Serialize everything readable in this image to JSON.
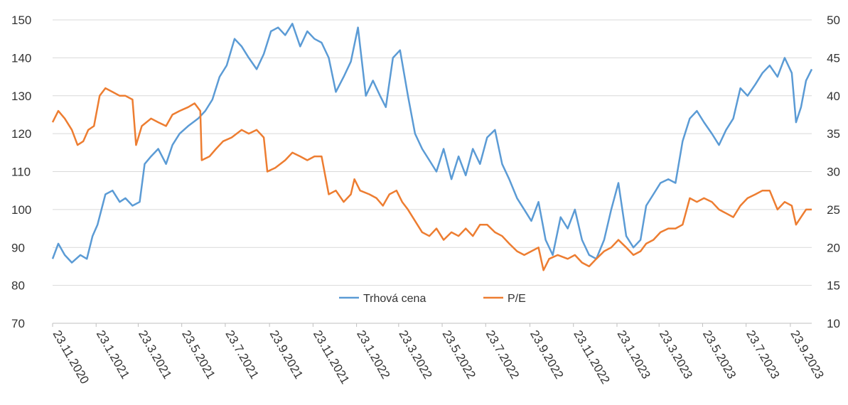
{
  "chart_data": {
    "type": "line",
    "title": "",
    "xlabel": "",
    "ylabel": "",
    "y_left": {
      "min": 70,
      "max": 150,
      "step": 10,
      "ticks": [
        "70",
        "80",
        "90",
        "100",
        "110",
        "120",
        "130",
        "140",
        "150"
      ]
    },
    "y_right": {
      "min": 10,
      "max": 50,
      "step": 5,
      "ticks": [
        "10",
        "15",
        "20",
        "25",
        "30",
        "35",
        "40",
        "45",
        "50"
      ]
    },
    "x_axis": {
      "start": "2020-11-23",
      "end": "2023-10-23",
      "labels": [
        "23.11.2020",
        "23.1.2021",
        "23.3.2021",
        "23.5.2021",
        "23.7.2021",
        "23.9.2021",
        "23.11.2021",
        "23.1.2022",
        "23.3.2022",
        "23.5.2022",
        "23.7.2022",
        "23.9.2022",
        "23.11.2022",
        "23.1.2023",
        "23.3.2023",
        "23.5.2023",
        "23.7.2023",
        "23.9.2023"
      ],
      "label_dates": [
        "2020-11-23",
        "2021-01-23",
        "2021-03-23",
        "2021-05-23",
        "2021-07-23",
        "2021-09-23",
        "2021-11-23",
        "2022-01-23",
        "2022-03-23",
        "2022-05-23",
        "2022-07-23",
        "2022-09-23",
        "2022-11-23",
        "2023-01-23",
        "2023-03-23",
        "2023-05-23",
        "2023-07-23",
        "2023-09-23"
      ]
    },
    "grid": true,
    "legend_position": "bottom-center",
    "series": [
      {
        "name": "Trhová cena",
        "axis": "left",
        "color": "#5b9bd5",
        "points": [
          [
            "2020-11-23",
            87
          ],
          [
            "2020-12-01",
            91
          ],
          [
            "2020-12-10",
            88
          ],
          [
            "2020-12-20",
            86
          ],
          [
            "2021-01-01",
            88
          ],
          [
            "2021-01-10",
            87
          ],
          [
            "2021-01-18",
            93
          ],
          [
            "2021-01-25",
            96
          ],
          [
            "2021-02-05",
            104
          ],
          [
            "2021-02-15",
            105
          ],
          [
            "2021-02-25",
            102
          ],
          [
            "2021-03-05",
            103
          ],
          [
            "2021-03-15",
            101
          ],
          [
            "2021-03-25",
            102
          ],
          [
            "2021-04-01",
            112
          ],
          [
            "2021-04-10",
            114
          ],
          [
            "2021-04-20",
            116
          ],
          [
            "2021-05-01",
            112
          ],
          [
            "2021-05-10",
            117
          ],
          [
            "2021-05-20",
            120
          ],
          [
            "2021-06-01",
            122
          ],
          [
            "2021-06-15",
            124
          ],
          [
            "2021-06-25",
            126
          ],
          [
            "2021-07-05",
            129
          ],
          [
            "2021-07-15",
            135
          ],
          [
            "2021-07-25",
            138
          ],
          [
            "2021-08-05",
            145
          ],
          [
            "2021-08-15",
            143
          ],
          [
            "2021-08-25",
            140
          ],
          [
            "2021-09-05",
            137
          ],
          [
            "2021-09-15",
            141
          ],
          [
            "2021-09-25",
            147
          ],
          [
            "2021-10-05",
            148
          ],
          [
            "2021-10-15",
            146
          ],
          [
            "2021-10-25",
            149
          ],
          [
            "2021-11-05",
            143
          ],
          [
            "2021-11-15",
            147
          ],
          [
            "2021-11-25",
            145
          ],
          [
            "2021-12-05",
            144
          ],
          [
            "2021-12-15",
            140
          ],
          [
            "2021-12-25",
            131
          ],
          [
            "2022-01-05",
            135
          ],
          [
            "2022-01-15",
            139
          ],
          [
            "2022-01-25",
            148
          ],
          [
            "2022-02-05",
            130
          ],
          [
            "2022-02-15",
            134
          ],
          [
            "2022-02-25",
            130
          ],
          [
            "2022-03-05",
            127
          ],
          [
            "2022-03-15",
            140
          ],
          [
            "2022-03-25",
            142
          ],
          [
            "2022-04-05",
            130
          ],
          [
            "2022-04-15",
            120
          ],
          [
            "2022-04-25",
            116
          ],
          [
            "2022-05-05",
            113
          ],
          [
            "2022-05-15",
            110
          ],
          [
            "2022-05-25",
            116
          ],
          [
            "2022-06-05",
            108
          ],
          [
            "2022-06-15",
            114
          ],
          [
            "2022-06-25",
            109
          ],
          [
            "2022-07-05",
            116
          ],
          [
            "2022-07-15",
            112
          ],
          [
            "2022-07-25",
            119
          ],
          [
            "2022-08-05",
            121
          ],
          [
            "2022-08-15",
            112
          ],
          [
            "2022-08-25",
            108
          ],
          [
            "2022-09-05",
            103
          ],
          [
            "2022-09-15",
            100
          ],
          [
            "2022-09-25",
            97
          ],
          [
            "2022-10-05",
            102
          ],
          [
            "2022-10-15",
            92
          ],
          [
            "2022-10-25",
            88
          ],
          [
            "2022-11-05",
            98
          ],
          [
            "2022-11-15",
            95
          ],
          [
            "2022-11-25",
            100
          ],
          [
            "2022-12-05",
            92
          ],
          [
            "2022-12-15",
            88
          ],
          [
            "2022-12-25",
            87
          ],
          [
            "2023-01-05",
            92
          ],
          [
            "2023-01-15",
            100
          ],
          [
            "2023-01-25",
            107
          ],
          [
            "2023-02-05",
            93
          ],
          [
            "2023-02-15",
            90
          ],
          [
            "2023-02-25",
            92
          ],
          [
            "2023-03-05",
            101
          ],
          [
            "2023-03-15",
            104
          ],
          [
            "2023-03-25",
            107
          ],
          [
            "2023-04-05",
            108
          ],
          [
            "2023-04-15",
            107
          ],
          [
            "2023-04-25",
            118
          ],
          [
            "2023-05-05",
            124
          ],
          [
            "2023-05-15",
            126
          ],
          [
            "2023-05-25",
            123
          ],
          [
            "2023-06-05",
            120
          ],
          [
            "2023-06-15",
            117
          ],
          [
            "2023-06-25",
            121
          ],
          [
            "2023-07-05",
            124
          ],
          [
            "2023-07-15",
            132
          ],
          [
            "2023-07-25",
            130
          ],
          [
            "2023-08-05",
            133
          ],
          [
            "2023-08-15",
            136
          ],
          [
            "2023-08-25",
            138
          ],
          [
            "2023-09-05",
            135
          ],
          [
            "2023-09-15",
            140
          ],
          [
            "2023-09-25",
            136
          ],
          [
            "2023-10-01",
            123
          ],
          [
            "2023-10-08",
            127
          ],
          [
            "2023-10-15",
            134
          ],
          [
            "2023-10-23",
            137
          ]
        ]
      },
      {
        "name": "P/E",
        "axis": "right",
        "color": "#ed7d31",
        "points": [
          [
            "2020-11-23",
            36.5
          ],
          [
            "2020-12-01",
            38
          ],
          [
            "2020-12-10",
            37
          ],
          [
            "2020-12-20",
            35.5
          ],
          [
            "2020-12-28",
            33.5
          ],
          [
            "2021-01-05",
            34
          ],
          [
            "2021-01-12",
            35.5
          ],
          [
            "2021-01-20",
            36
          ],
          [
            "2021-01-28",
            40
          ],
          [
            "2021-02-05",
            41
          ],
          [
            "2021-02-15",
            40.5
          ],
          [
            "2021-02-25",
            40
          ],
          [
            "2021-03-05",
            40
          ],
          [
            "2021-03-15",
            39.5
          ],
          [
            "2021-03-20",
            33.5
          ],
          [
            "2021-03-28",
            36
          ],
          [
            "2021-04-10",
            37
          ],
          [
            "2021-04-20",
            36.5
          ],
          [
            "2021-05-01",
            36
          ],
          [
            "2021-05-10",
            37.5
          ],
          [
            "2021-05-20",
            38
          ],
          [
            "2021-06-01",
            38.5
          ],
          [
            "2021-06-10",
            39
          ],
          [
            "2021-06-18",
            38
          ],
          [
            "2021-06-20",
            31.5
          ],
          [
            "2021-07-01",
            32
          ],
          [
            "2021-07-10",
            33
          ],
          [
            "2021-07-20",
            34
          ],
          [
            "2021-08-01",
            34.5
          ],
          [
            "2021-08-15",
            35.5
          ],
          [
            "2021-08-25",
            35
          ],
          [
            "2021-09-05",
            35.5
          ],
          [
            "2021-09-15",
            34.5
          ],
          [
            "2021-09-20",
            30
          ],
          [
            "2021-10-01",
            30.5
          ],
          [
            "2021-10-15",
            31.5
          ],
          [
            "2021-10-25",
            32.5
          ],
          [
            "2021-11-05",
            32
          ],
          [
            "2021-11-15",
            31.5
          ],
          [
            "2021-11-25",
            32
          ],
          [
            "2021-12-05",
            32
          ],
          [
            "2021-12-15",
            27
          ],
          [
            "2021-12-25",
            27.5
          ],
          [
            "2022-01-05",
            26
          ],
          [
            "2022-01-15",
            27
          ],
          [
            "2022-01-20",
            29
          ],
          [
            "2022-01-28",
            27.5
          ],
          [
            "2022-02-10",
            27
          ],
          [
            "2022-02-20",
            26.5
          ],
          [
            "2022-03-01",
            25.5
          ],
          [
            "2022-03-10",
            27
          ],
          [
            "2022-03-20",
            27.5
          ],
          [
            "2022-03-28",
            26
          ],
          [
            "2022-04-05",
            25
          ],
          [
            "2022-04-15",
            23.5
          ],
          [
            "2022-04-25",
            22
          ],
          [
            "2022-05-05",
            21.5
          ],
          [
            "2022-05-15",
            22.5
          ],
          [
            "2022-05-25",
            21
          ],
          [
            "2022-06-05",
            22
          ],
          [
            "2022-06-15",
            21.5
          ],
          [
            "2022-06-25",
            22.5
          ],
          [
            "2022-07-05",
            21.5
          ],
          [
            "2022-07-15",
            23
          ],
          [
            "2022-07-25",
            23
          ],
          [
            "2022-08-05",
            22
          ],
          [
            "2022-08-15",
            21.5
          ],
          [
            "2022-08-25",
            20.5
          ],
          [
            "2022-09-05",
            19.5
          ],
          [
            "2022-09-15",
            19
          ],
          [
            "2022-09-25",
            19.5
          ],
          [
            "2022-10-05",
            20
          ],
          [
            "2022-10-12",
            17
          ],
          [
            "2022-10-20",
            18.5
          ],
          [
            "2022-11-01",
            19
          ],
          [
            "2022-11-15",
            18.5
          ],
          [
            "2022-11-25",
            19
          ],
          [
            "2022-12-05",
            18
          ],
          [
            "2022-12-15",
            17.5
          ],
          [
            "2022-12-25",
            18.5
          ],
          [
            "2023-01-05",
            19.5
          ],
          [
            "2023-01-15",
            20
          ],
          [
            "2023-01-25",
            21
          ],
          [
            "2023-02-05",
            20
          ],
          [
            "2023-02-15",
            19
          ],
          [
            "2023-02-25",
            19.5
          ],
          [
            "2023-03-05",
            20.5
          ],
          [
            "2023-03-15",
            21
          ],
          [
            "2023-03-25",
            22
          ],
          [
            "2023-04-05",
            22.5
          ],
          [
            "2023-04-15",
            22.5
          ],
          [
            "2023-04-25",
            23
          ],
          [
            "2023-05-05",
            26.5
          ],
          [
            "2023-05-15",
            26
          ],
          [
            "2023-05-25",
            26.5
          ],
          [
            "2023-06-05",
            26
          ],
          [
            "2023-06-15",
            25
          ],
          [
            "2023-06-25",
            24.5
          ],
          [
            "2023-07-05",
            24
          ],
          [
            "2023-07-15",
            25.5
          ],
          [
            "2023-07-25",
            26.5
          ],
          [
            "2023-08-05",
            27
          ],
          [
            "2023-08-15",
            27.5
          ],
          [
            "2023-08-25",
            27.5
          ],
          [
            "2023-09-05",
            25
          ],
          [
            "2023-09-15",
            26
          ],
          [
            "2023-09-25",
            25.5
          ],
          [
            "2023-10-01",
            23
          ],
          [
            "2023-10-08",
            24
          ],
          [
            "2023-10-15",
            25
          ],
          [
            "2023-10-23",
            25
          ]
        ]
      }
    ]
  }
}
